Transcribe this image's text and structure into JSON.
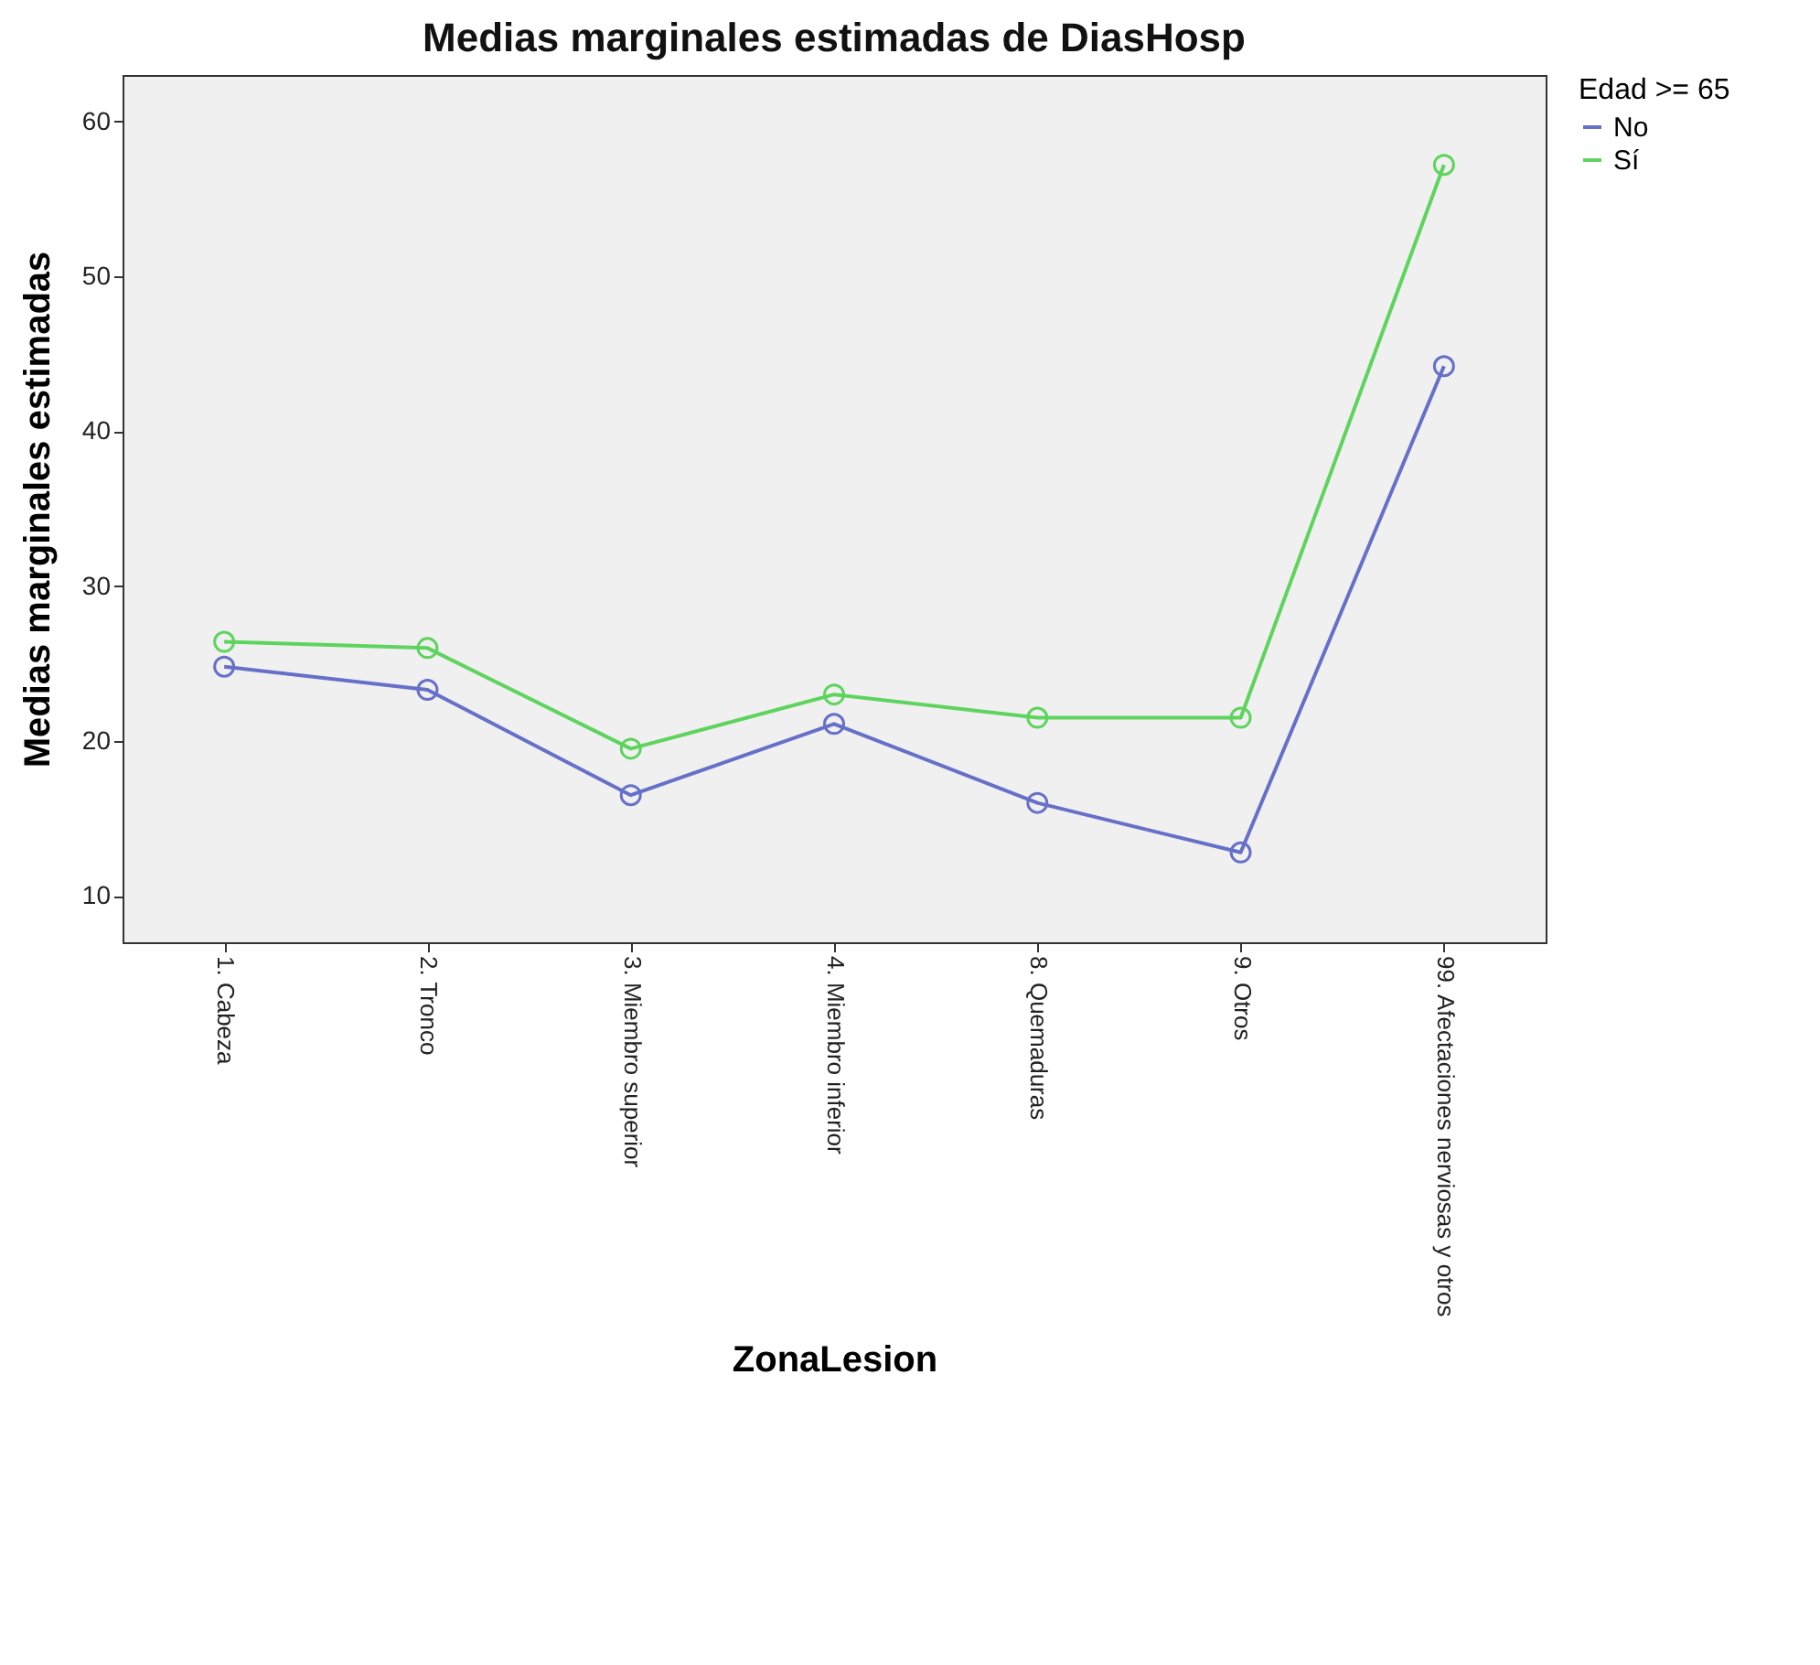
{
  "chart_data": {
    "type": "line",
    "title": "Medias marginales estimadas de DiasHosp",
    "xlabel": "ZonaLesion",
    "ylabel": "Medias marginales estimadas",
    "legend_title": "Edad >= 65",
    "categories": [
      "1. Cabeza",
      "2. Tronco",
      "3. Miembro superior",
      "4. Miembro inferior",
      "8. Quemaduras",
      "9. Otros",
      "99. Afectaciones nerviosas y otros"
    ],
    "series": [
      {
        "name": "No",
        "color": "#6670c8",
        "values": [
          24.8,
          23.3,
          16.5,
          21.1,
          16.0,
          12.8,
          44.2
        ]
      },
      {
        "name": "Sí",
        "color": "#5ed45e",
        "values": [
          26.4,
          26.0,
          19.5,
          23.0,
          21.5,
          21.5,
          57.2
        ]
      }
    ],
    "ylim": [
      7,
      63
    ],
    "yticks": [
      10,
      20,
      30,
      40,
      50,
      60
    ],
    "grid": false,
    "legend": "top right",
    "marker": "circle"
  }
}
